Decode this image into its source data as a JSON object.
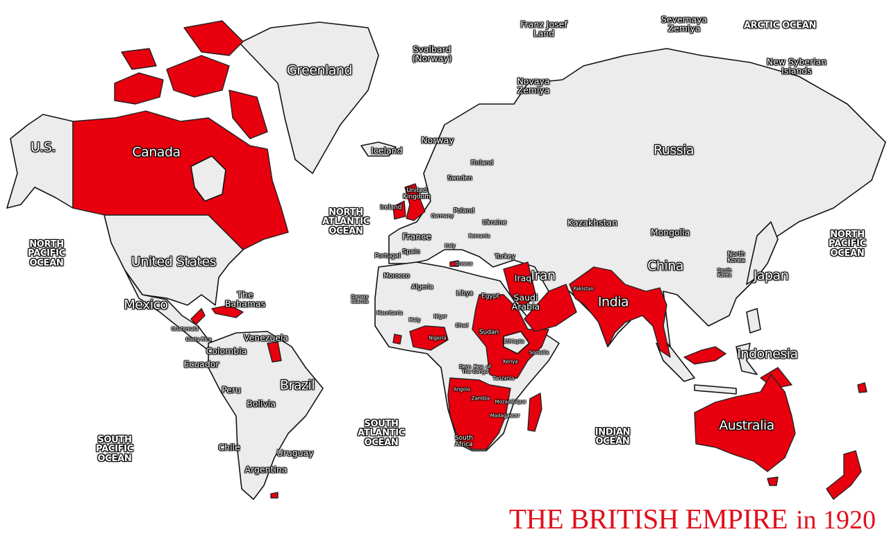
{
  "title": {
    "main": "THE BRITISH EMPIRE",
    "year": "in 1920"
  },
  "colors": {
    "british_empire": "#e8000e",
    "other_land": "#ececec",
    "ocean": "#ffffff",
    "title": "#e0101c"
  },
  "labels": [
    {
      "text": "U.S.",
      "kind": "large"
    },
    {
      "text": "Canada",
      "kind": "large"
    },
    {
      "text": "Greenland",
      "kind": "large"
    },
    {
      "text": "Svalbard\n(Norway)",
      "kind": "medium"
    },
    {
      "text": "Franz Josef\nLand",
      "kind": "medium"
    },
    {
      "text": "Severnaya\nZemlya",
      "kind": "medium"
    },
    {
      "text": "ARCTIC OCEAN",
      "kind": "ocean"
    },
    {
      "text": "New Syberian\nIslands",
      "kind": "medium"
    },
    {
      "text": "Novaya\nZemlya",
      "kind": "medium"
    },
    {
      "text": "Iceland",
      "kind": "medium"
    },
    {
      "text": "Norway",
      "kind": "medium"
    },
    {
      "text": "Finland",
      "kind": "small"
    },
    {
      "text": "Sweden",
      "kind": "small"
    },
    {
      "text": "Russia",
      "kind": "large"
    },
    {
      "text": "United\nKingdom",
      "kind": "small"
    },
    {
      "text": "Ireland",
      "kind": "small"
    },
    {
      "text": "Poland",
      "kind": "small"
    },
    {
      "text": "Germany",
      "kind": "tiny"
    },
    {
      "text": "Ukraine",
      "kind": "small"
    },
    {
      "text": "NORTH\nATLANTIC\nOCEAN",
      "kind": "ocean"
    },
    {
      "text": "Kazakhstan",
      "kind": "medium"
    },
    {
      "text": "Mongolia",
      "kind": "medium"
    },
    {
      "text": "NORTH\nPACIFIC\nOCEAN",
      "kind": "ocean"
    },
    {
      "text": "NORTH\nPACIFIC\nOCEAN",
      "kind": "ocean"
    },
    {
      "text": "France",
      "kind": "medium"
    },
    {
      "text": "Romania",
      "kind": "tiny"
    },
    {
      "text": "Italy",
      "kind": "tiny"
    },
    {
      "text": "Portugal",
      "kind": "small"
    },
    {
      "text": "Spain",
      "kind": "small"
    },
    {
      "text": "Turkey",
      "kind": "small"
    },
    {
      "text": "Greece",
      "kind": "tiny"
    },
    {
      "text": "United States",
      "kind": "large"
    },
    {
      "text": "Iran",
      "kind": "large"
    },
    {
      "text": "China",
      "kind": "large"
    },
    {
      "text": "North\nKorea",
      "kind": "small"
    },
    {
      "text": "South\nKorea",
      "kind": "tiny"
    },
    {
      "text": "Japan",
      "kind": "large"
    },
    {
      "text": "Morocco",
      "kind": "small"
    },
    {
      "text": "Iraq",
      "kind": "medium"
    },
    {
      "text": "Algeria",
      "kind": "small"
    },
    {
      "text": "Canary\nIslands",
      "kind": "tiny"
    },
    {
      "text": "Libya",
      "kind": "small"
    },
    {
      "text": "Egypt",
      "kind": "small"
    },
    {
      "text": "Saudi\nArabia",
      "kind": "medium"
    },
    {
      "text": "Pakistan",
      "kind": "tiny"
    },
    {
      "text": "India",
      "kind": "large"
    },
    {
      "text": "The\nBahamas",
      "kind": "medium"
    },
    {
      "text": "Mexico",
      "kind": "large"
    },
    {
      "text": "Mauritania",
      "kind": "tiny"
    },
    {
      "text": "Maly",
      "kind": "tiny"
    },
    {
      "text": "Niger",
      "kind": "tiny"
    },
    {
      "text": "Chad",
      "kind": "tiny"
    },
    {
      "text": "Sudan",
      "kind": "small"
    },
    {
      "text": "Nigeria",
      "kind": "tiny"
    },
    {
      "text": "Ethiopia",
      "kind": "tiny"
    },
    {
      "text": "Guatemala",
      "kind": "tiny"
    },
    {
      "text": "Costa Rica",
      "kind": "tiny"
    },
    {
      "text": "Venezuela",
      "kind": "medium"
    },
    {
      "text": "Colombia",
      "kind": "medium"
    },
    {
      "text": "Somalia",
      "kind": "tiny"
    },
    {
      "text": "Indonesia",
      "kind": "large"
    },
    {
      "text": "Ecuador",
      "kind": "medium"
    },
    {
      "text": "Dem. Rep. of\nThe Congo",
      "kind": "tiny"
    },
    {
      "text": "Kenya",
      "kind": "tiny"
    },
    {
      "text": "Tanzania",
      "kind": "tiny"
    },
    {
      "text": "Brazil",
      "kind": "large"
    },
    {
      "text": "Angola",
      "kind": "tiny"
    },
    {
      "text": "Zambia",
      "kind": "tiny"
    },
    {
      "text": "Mozambique",
      "kind": "tiny"
    },
    {
      "text": "Peru",
      "kind": "medium"
    },
    {
      "text": "Bolivia",
      "kind": "medium"
    },
    {
      "text": "SOUTH\nATLANTIC\nOCEAN",
      "kind": "ocean"
    },
    {
      "text": "Madagascar",
      "kind": "tiny"
    },
    {
      "text": "Australia",
      "kind": "large"
    },
    {
      "text": "INDIAN\nOCEAN",
      "kind": "ocean"
    },
    {
      "text": "SOUTH\nPACIFIC\nOCEAN",
      "kind": "ocean"
    },
    {
      "text": "South\nAfrica",
      "kind": "small"
    },
    {
      "text": "Chile",
      "kind": "medium"
    },
    {
      "text": "Uruguay",
      "kind": "medium"
    },
    {
      "text": "Argentina",
      "kind": "medium"
    }
  ]
}
